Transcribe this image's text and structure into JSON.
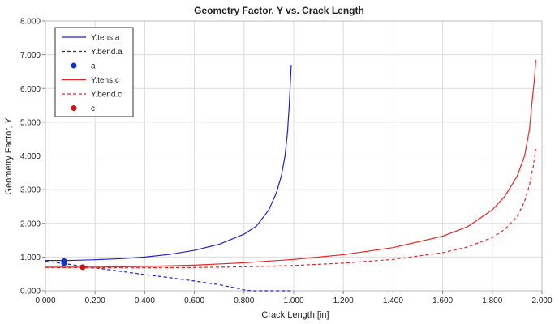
{
  "chart_data": {
    "type": "line",
    "title": "Geometry Factor, Y vs. Crack Length",
    "xlabel": "Crack Length [in]",
    "ylabel": "Geometry Factor, Y",
    "xlim": [
      0,
      2.0
    ],
    "ylim": [
      0,
      8.0
    ],
    "x_ticks": [
      "0.000",
      "0.200",
      "0.400",
      "0.600",
      "0.800",
      "1.000",
      "1.200",
      "1.400",
      "1.600",
      "1.800",
      "2.000"
    ],
    "y_ticks": [
      "0.000",
      "1.000",
      "2.000",
      "3.000",
      "4.000",
      "5.000",
      "6.000",
      "7.000",
      "8.000"
    ],
    "grid": true,
    "legend_position": "top-left",
    "series": [
      {
        "name": "Y.tens.a",
        "style": "solid",
        "color": "#2222cc",
        "points": [
          [
            0,
            0.9
          ],
          [
            0.1,
            0.9
          ],
          [
            0.2,
            0.92
          ],
          [
            0.3,
            0.95
          ],
          [
            0.4,
            1.0
          ],
          [
            0.5,
            1.08
          ],
          [
            0.6,
            1.2
          ],
          [
            0.7,
            1.38
          ],
          [
            0.8,
            1.68
          ],
          [
            0.85,
            1.92
          ],
          [
            0.9,
            2.4
          ],
          [
            0.93,
            2.9
          ],
          [
            0.95,
            3.4
          ],
          [
            0.965,
            4.0
          ],
          [
            0.975,
            4.7
          ],
          [
            0.982,
            5.5
          ],
          [
            0.99,
            6.7
          ]
        ]
      },
      {
        "name": "Y.bend.a",
        "style": "dashed",
        "color": "#2222cc",
        "points": [
          [
            0,
            0.88
          ],
          [
            0.1,
            0.78
          ],
          [
            0.2,
            0.68
          ],
          [
            0.3,
            0.58
          ],
          [
            0.4,
            0.48
          ],
          [
            0.5,
            0.39
          ],
          [
            0.6,
            0.29
          ],
          [
            0.7,
            0.18
          ],
          [
            0.77,
            0.08
          ],
          [
            0.81,
            0.01
          ],
          [
            0.84,
            0
          ],
          [
            0.99,
            0
          ]
        ]
      },
      {
        "name": "a",
        "style": "marker",
        "color": "#1133cc",
        "points": [
          [
            0.075,
            0.88
          ],
          [
            0.075,
            0.82
          ]
        ]
      },
      {
        "name": "Y.tens.c",
        "style": "solid",
        "color": "#ee2222",
        "points": [
          [
            0,
            0.7
          ],
          [
            0.2,
            0.7
          ],
          [
            0.4,
            0.72
          ],
          [
            0.6,
            0.76
          ],
          [
            0.8,
            0.83
          ],
          [
            1.0,
            0.93
          ],
          [
            1.2,
            1.07
          ],
          [
            1.4,
            1.28
          ],
          [
            1.6,
            1.62
          ],
          [
            1.7,
            1.9
          ],
          [
            1.8,
            2.4
          ],
          [
            1.85,
            2.8
          ],
          [
            1.9,
            3.4
          ],
          [
            1.93,
            4.0
          ],
          [
            1.95,
            4.8
          ],
          [
            1.96,
            5.6
          ],
          [
            1.97,
            6.3
          ],
          [
            1.975,
            6.85
          ]
        ]
      },
      {
        "name": "Y.bend.c",
        "style": "dashed",
        "color": "#ee2222",
        "points": [
          [
            0,
            0.69
          ],
          [
            0.2,
            0.68
          ],
          [
            0.4,
            0.68
          ],
          [
            0.6,
            0.69
          ],
          [
            0.8,
            0.71
          ],
          [
            1.0,
            0.75
          ],
          [
            1.2,
            0.82
          ],
          [
            1.4,
            0.93
          ],
          [
            1.6,
            1.13
          ],
          [
            1.7,
            1.3
          ],
          [
            1.8,
            1.58
          ],
          [
            1.85,
            1.82
          ],
          [
            1.9,
            2.2
          ],
          [
            1.93,
            2.65
          ],
          [
            1.95,
            3.15
          ],
          [
            1.965,
            3.7
          ],
          [
            1.975,
            4.2
          ]
        ]
      },
      {
        "name": "c",
        "style": "marker",
        "color": "#cc1111",
        "points": [
          [
            0.15,
            0.7
          ]
        ]
      }
    ]
  }
}
